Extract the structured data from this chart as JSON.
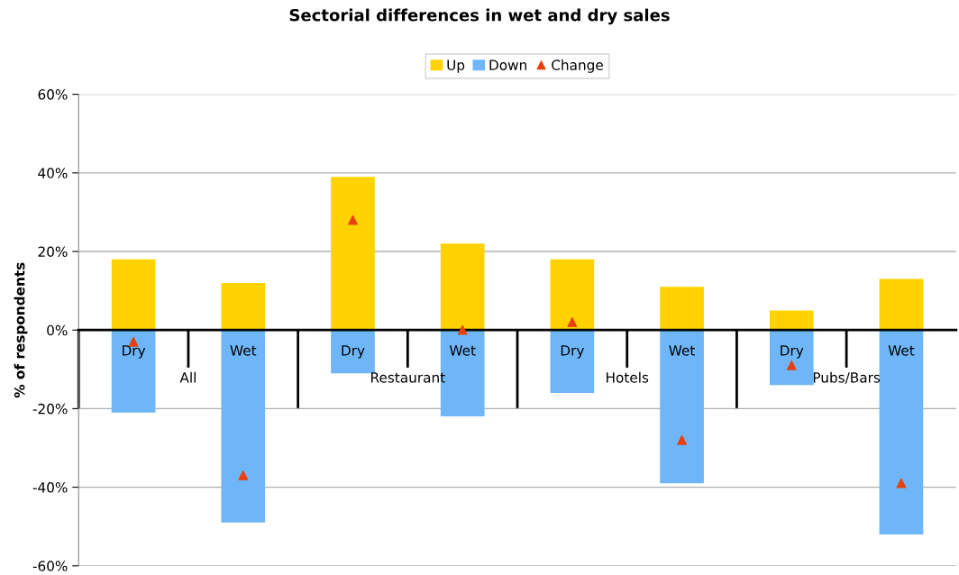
{
  "chart_data": {
    "type": "bar",
    "title": "Sectorial differences in wet and dry sales",
    "ylabel": "% of respondents",
    "categories": [
      "Dry",
      "Wet",
      "Dry",
      "Wet",
      "Dry",
      "Wet",
      "Dry",
      "Wet"
    ],
    "annotations": [
      "All",
      "Restaurant",
      "Hotels",
      "Pubs/Bars"
    ],
    "stacked": true,
    "series": [
      {
        "name": "Up",
        "color": "#ffd200",
        "values": [
          18,
          12,
          39,
          22,
          18,
          11,
          5,
          13
        ]
      },
      {
        "name": "Down",
        "color": "#6fb6f8",
        "values": [
          -21,
          -49,
          -11,
          -22,
          -16,
          -39,
          -14,
          -52
        ]
      },
      {
        "name": "Change",
        "type": "scatter",
        "color": "#e8400c",
        "marker": "triangle",
        "values": [
          -3,
          -37,
          28,
          0,
          2,
          -28,
          -9,
          -39
        ]
      }
    ],
    "ylim": [
      -60,
      60
    ],
    "yticks": [
      {
        "value": -60,
        "label": "-60%"
      },
      {
        "value": -40,
        "label": "-40%"
      },
      {
        "value": -20,
        "label": "-20%"
      },
      {
        "value": 0,
        "label": "0%"
      },
      {
        "value": 20,
        "label": "20%"
      },
      {
        "value": 40,
        "label": "40%"
      },
      {
        "value": 60,
        "label": "60%"
      }
    ],
    "grid": "y",
    "legend": "top"
  }
}
